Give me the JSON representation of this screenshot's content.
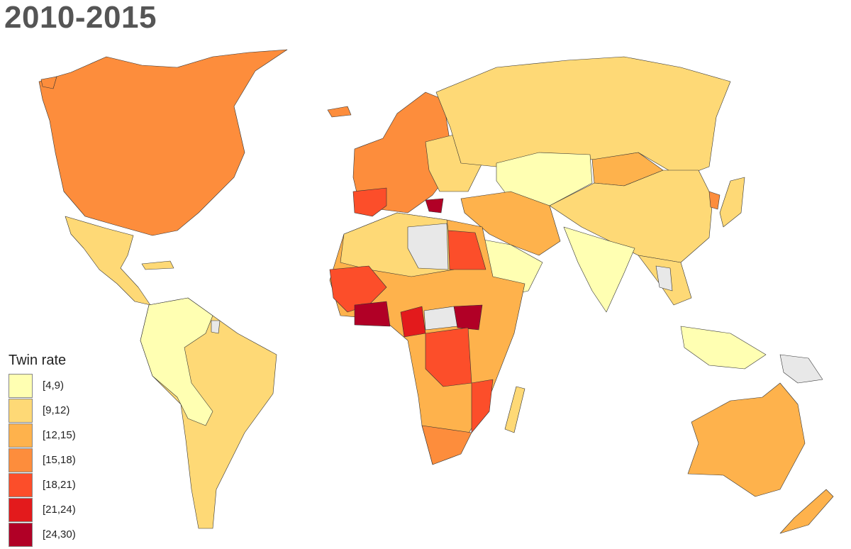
{
  "title": "2010-2015",
  "legend": {
    "title": "Twin rate",
    "no_data_color": "#E8E8E8",
    "classes": [
      {
        "label": "[4,9)",
        "color": "#FFFFB2"
      },
      {
        "label": "[9,12)",
        "color": "#FED976"
      },
      {
        "label": "[12,15)",
        "color": "#FEB24C"
      },
      {
        "label": "[15,18)",
        "color": "#FD8D3C"
      },
      {
        "label": "[18,21)",
        "color": "#FC4E2A"
      },
      {
        "label": "[21,24)",
        "color": "#E31A1C"
      },
      {
        "label": "[24,30)",
        "color": "#B10026"
      }
    ]
  }
}
